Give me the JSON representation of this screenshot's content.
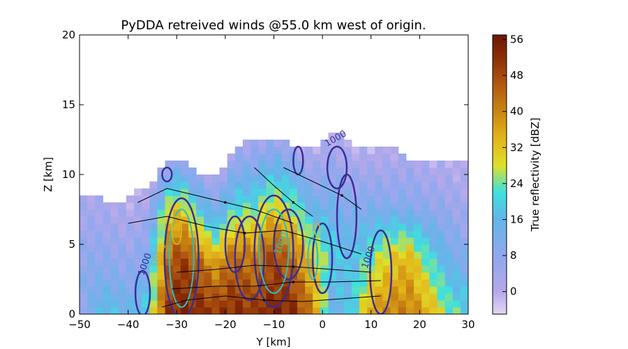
{
  "chart_data": {
    "type": "heatmap",
    "title": "PyDDA retreived winds @55.0 km west of origin.",
    "xlabel": "Y [km]",
    "ylabel": "Z [km]",
    "xlim": [
      -50,
      30
    ],
    "ylim": [
      0,
      20
    ],
    "xticks": [
      "−50",
      "−40",
      "−30",
      "−20",
      "−10",
      "0",
      "10",
      "20",
      "30"
    ],
    "yticks": [
      "0",
      "5",
      "10",
      "15",
      "20"
    ],
    "colorbar": {
      "label": "True reflectivity [dBZ]",
      "min": -5,
      "max": 57,
      "ticks": [
        "0",
        "8",
        "16",
        "24",
        "32",
        "40",
        "48",
        "56"
      ],
      "stops": [
        {
          "v": -5,
          "c": "#e2d6f5"
        },
        {
          "v": 0,
          "c": "#b6a8ea"
        },
        {
          "v": 8,
          "c": "#8fa8ee"
        },
        {
          "v": 16,
          "c": "#63b6e8"
        },
        {
          "v": 22,
          "c": "#3ee0e0"
        },
        {
          "v": 28,
          "c": "#dee02a"
        },
        {
          "v": 34,
          "c": "#e3b41a"
        },
        {
          "v": 40,
          "c": "#c98412"
        },
        {
          "v": 46,
          "c": "#b05812"
        },
        {
          "v": 52,
          "c": "#8a2e06"
        },
        {
          "v": 57,
          "c": "#6e1602"
        }
      ]
    },
    "reflectivity_columns": [
      {
        "y": -50,
        "top": 8.5,
        "profile": [
          6,
          8,
          5,
          2
        ]
      },
      {
        "y": -45,
        "top": 8.0,
        "profile": [
          18,
          10,
          6,
          2
        ]
      },
      {
        "y": -40,
        "top": 8.0,
        "profile": [
          14,
          8,
          4,
          0
        ]
      },
      {
        "y": -36,
        "top": 9.0,
        "profile": [
          20,
          12,
          6,
          0
        ]
      },
      {
        "y": -32,
        "top": 10.5,
        "profile": [
          50,
          44,
          30,
          4
        ]
      },
      {
        "y": -29,
        "top": 11.0,
        "profile": [
          54,
          50,
          32,
          6
        ]
      },
      {
        "y": -26,
        "top": 10.0,
        "profile": [
          52,
          46,
          24,
          4
        ]
      },
      {
        "y": -22,
        "top": 9.5,
        "profile": [
          50,
          38,
          16,
          2
        ]
      },
      {
        "y": -18,
        "top": 11.5,
        "profile": [
          52,
          44,
          20,
          4
        ]
      },
      {
        "y": -14,
        "top": 12.5,
        "profile": [
          50,
          40,
          18,
          2
        ]
      },
      {
        "y": -10,
        "top": 12.5,
        "profile": [
          54,
          48,
          26,
          4
        ]
      },
      {
        "y": -6,
        "top": 12.0,
        "profile": [
          52,
          42,
          22,
          2
        ]
      },
      {
        "y": -2,
        "top": 11.5,
        "profile": [
          40,
          30,
          12,
          0
        ]
      },
      {
        "y": 2,
        "top": 13.0,
        "profile": [
          14,
          20,
          10,
          0
        ]
      },
      {
        "y": 6,
        "top": 12.0,
        "profile": [
          18,
          16,
          8,
          0
        ]
      },
      {
        "y": 10,
        "top": 11.5,
        "profile": [
          36,
          24,
          10,
          0
        ]
      },
      {
        "y": 14,
        "top": 12.0,
        "profile": [
          40,
          30,
          8,
          0
        ]
      },
      {
        "y": 18,
        "top": 11.0,
        "profile": [
          40,
          34,
          10,
          2
        ]
      },
      {
        "y": 22,
        "top": 11.0,
        "profile": [
          34,
          22,
          8,
          0
        ]
      },
      {
        "y": 26,
        "top": 11.0,
        "profile": [
          24,
          14,
          6,
          0
        ]
      },
      {
        "y": 30,
        "top": 10.5,
        "profile": [
          20,
          10,
          4,
          0
        ]
      }
    ],
    "contour_labels": [
      "1000",
      "1000",
      "1000",
      "1000",
      "1000"
    ],
    "streamline_color": "#000000",
    "contour_colors": [
      "#3a2f96",
      "#28c0c8",
      "#d8c020"
    ]
  }
}
